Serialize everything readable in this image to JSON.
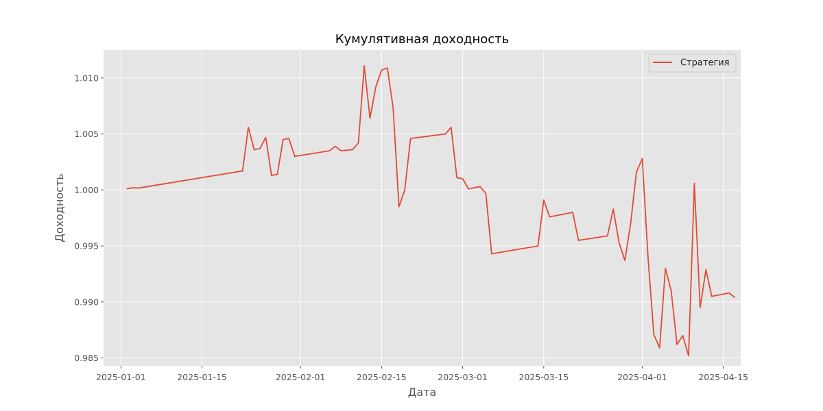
{
  "chart_data": {
    "type": "line",
    "title": "Кумулятивная доходность",
    "xlabel": "Дата",
    "ylabel": "Доходность",
    "xlim": [
      "2024-12-29",
      "2025-04-18"
    ],
    "ylim": [
      0.9843,
      1.0125
    ],
    "x_ticks": [
      "2025-01-01",
      "2025-01-15",
      "2025-02-01",
      "2025-02-15",
      "2025-03-01",
      "2025-03-15",
      "2025-04-01",
      "2025-04-15"
    ],
    "y_ticks": [
      0.985,
      0.99,
      0.995,
      1.0,
      1.005,
      1.01
    ],
    "y_tick_labels": [
      "0.985",
      "0.990",
      "0.995",
      "1.000",
      "1.005",
      "1.010"
    ],
    "grid": true,
    "legend_position": "top-right",
    "series": [
      {
        "name": "Стратегия",
        "color": "#e24a33",
        "points": [
          [
            "2025-01-02",
            1.0001
          ],
          [
            "2025-01-03",
            1.0002
          ],
          [
            "2025-01-04",
            1.00017
          ],
          [
            "2025-01-22",
            1.0017
          ],
          [
            "2025-01-23",
            1.0056
          ],
          [
            "2025-01-24",
            1.0036
          ],
          [
            "2025-01-25",
            1.0037
          ],
          [
            "2025-01-26",
            1.0047
          ],
          [
            "2025-01-27",
            1.0013
          ],
          [
            "2025-01-28",
            1.0014
          ],
          [
            "2025-01-29",
            1.0045
          ],
          [
            "2025-01-30",
            1.0046
          ],
          [
            "2025-01-31",
            1.003
          ],
          [
            "2025-02-06",
            1.0035
          ],
          [
            "2025-02-07",
            1.0039
          ],
          [
            "2025-02-08",
            1.0035
          ],
          [
            "2025-02-10",
            1.0036
          ],
          [
            "2025-02-11",
            1.0042
          ],
          [
            "2025-02-12",
            1.0111
          ],
          [
            "2025-02-13",
            1.0064
          ],
          [
            "2025-02-14",
            1.0092
          ],
          [
            "2025-02-15",
            1.0107
          ],
          [
            "2025-02-16",
            1.0109
          ],
          [
            "2025-02-17",
            1.0073
          ],
          [
            "2025-02-18",
            0.9985
          ],
          [
            "2025-02-19",
            1.0
          ],
          [
            "2025-02-20",
            1.0046
          ],
          [
            "2025-02-26",
            1.005
          ],
          [
            "2025-02-27",
            1.0056
          ],
          [
            "2025-02-28",
            1.0011
          ],
          [
            "2025-03-01",
            1.001
          ],
          [
            "2025-03-02",
            1.0001
          ],
          [
            "2025-03-04",
            1.0003
          ],
          [
            "2025-03-05",
            0.9997
          ],
          [
            "2025-03-06",
            0.9943
          ],
          [
            "2025-03-14",
            0.995
          ],
          [
            "2025-03-15",
            0.9991
          ],
          [
            "2025-03-16",
            0.9976
          ],
          [
            "2025-03-20",
            0.998
          ],
          [
            "2025-03-21",
            0.9955
          ],
          [
            "2025-03-26",
            0.9959
          ],
          [
            "2025-03-27",
            0.9983
          ],
          [
            "2025-03-28",
            0.9953
          ],
          [
            "2025-03-29",
            0.9937
          ],
          [
            "2025-03-30",
            0.997
          ],
          [
            "2025-03-31",
            1.0016
          ],
          [
            "2025-04-01",
            1.0028
          ],
          [
            "2025-04-02",
            0.994
          ],
          [
            "2025-04-03",
            0.9871
          ],
          [
            "2025-04-04",
            0.9859
          ],
          [
            "2025-04-05",
            0.993
          ],
          [
            "2025-04-06",
            0.991
          ],
          [
            "2025-04-07",
            0.9862
          ],
          [
            "2025-04-08",
            0.987
          ],
          [
            "2025-04-09",
            0.9852
          ],
          [
            "2025-04-10",
            1.0006
          ],
          [
            "2025-04-11",
            0.9895
          ],
          [
            "2025-04-12",
            0.9929
          ],
          [
            "2025-04-13",
            0.9905
          ],
          [
            "2025-04-16",
            0.9908
          ],
          [
            "2025-04-17",
            0.9904
          ]
        ]
      }
    ]
  }
}
